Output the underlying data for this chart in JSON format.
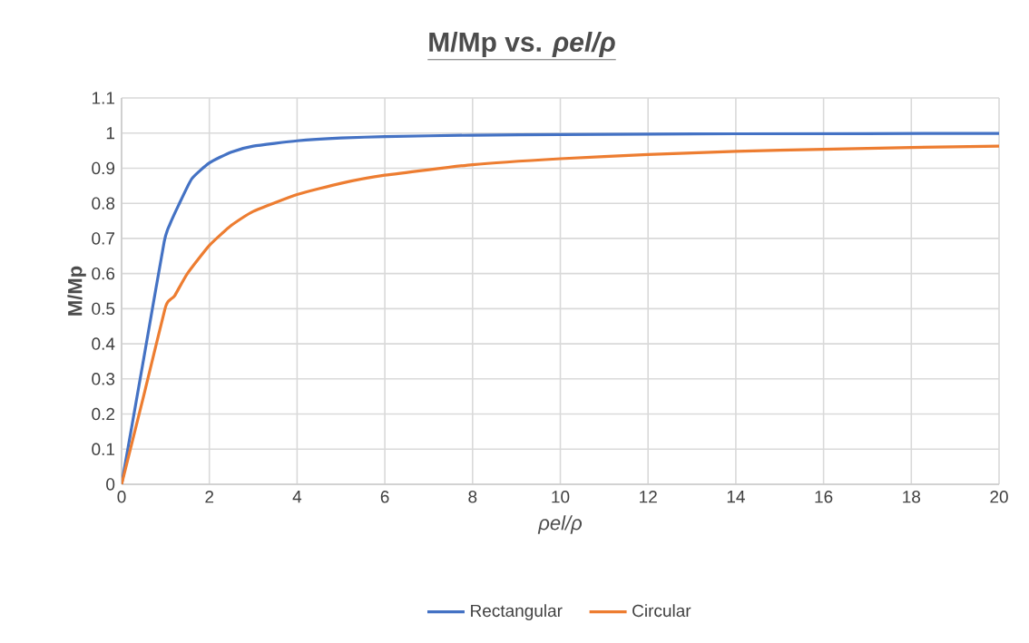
{
  "chart_data": {
    "type": "line",
    "title": "M/Mp vs. *ρel/ρ*",
    "xlabel": "ρel/ρ",
    "ylabel": "M/Mp",
    "xlim": [
      0,
      20
    ],
    "xticks": [
      0,
      2,
      4,
      6,
      8,
      10,
      12,
      14,
      16,
      18,
      20
    ],
    "ylim": [
      0,
      1.1
    ],
    "yticks": [
      0,
      0.1,
      0.2,
      0.3,
      0.4,
      0.5,
      0.6,
      0.7,
      0.8,
      0.9,
      1,
      1.1
    ],
    "grid": true,
    "legend": "bottom",
    "marker": "none",
    "line_style": "solid",
    "series": [
      {
        "name": "Rectangular",
        "color": "#4472c4",
        "x": [
          0,
          0.5,
          0.97,
          1.1,
          1.3,
          1.6,
          2,
          2.5,
          3,
          4,
          5,
          6,
          8,
          10,
          14,
          20
        ],
        "values": [
          0,
          0.355,
          0.69,
          0.74,
          0.795,
          0.87,
          0.915,
          0.946,
          0.963,
          0.978,
          0.986,
          0.99,
          0.994,
          0.996,
          0.998,
          0.999
        ]
      },
      {
        "name": "Circular",
        "color": "#ed7d31",
        "x": [
          0,
          0.5,
          0.99,
          1.1,
          1.21,
          1.5,
          2,
          2.5,
          3,
          4,
          5,
          6,
          8,
          10,
          12,
          14,
          16,
          18,
          20
        ],
        "values": [
          0,
          0.25,
          0.5,
          0.525,
          0.537,
          0.6,
          0.68,
          0.737,
          0.777,
          0.825,
          0.857,
          0.88,
          0.91,
          0.927,
          0.939,
          0.948,
          0.954,
          0.959,
          0.963
        ]
      }
    ]
  }
}
